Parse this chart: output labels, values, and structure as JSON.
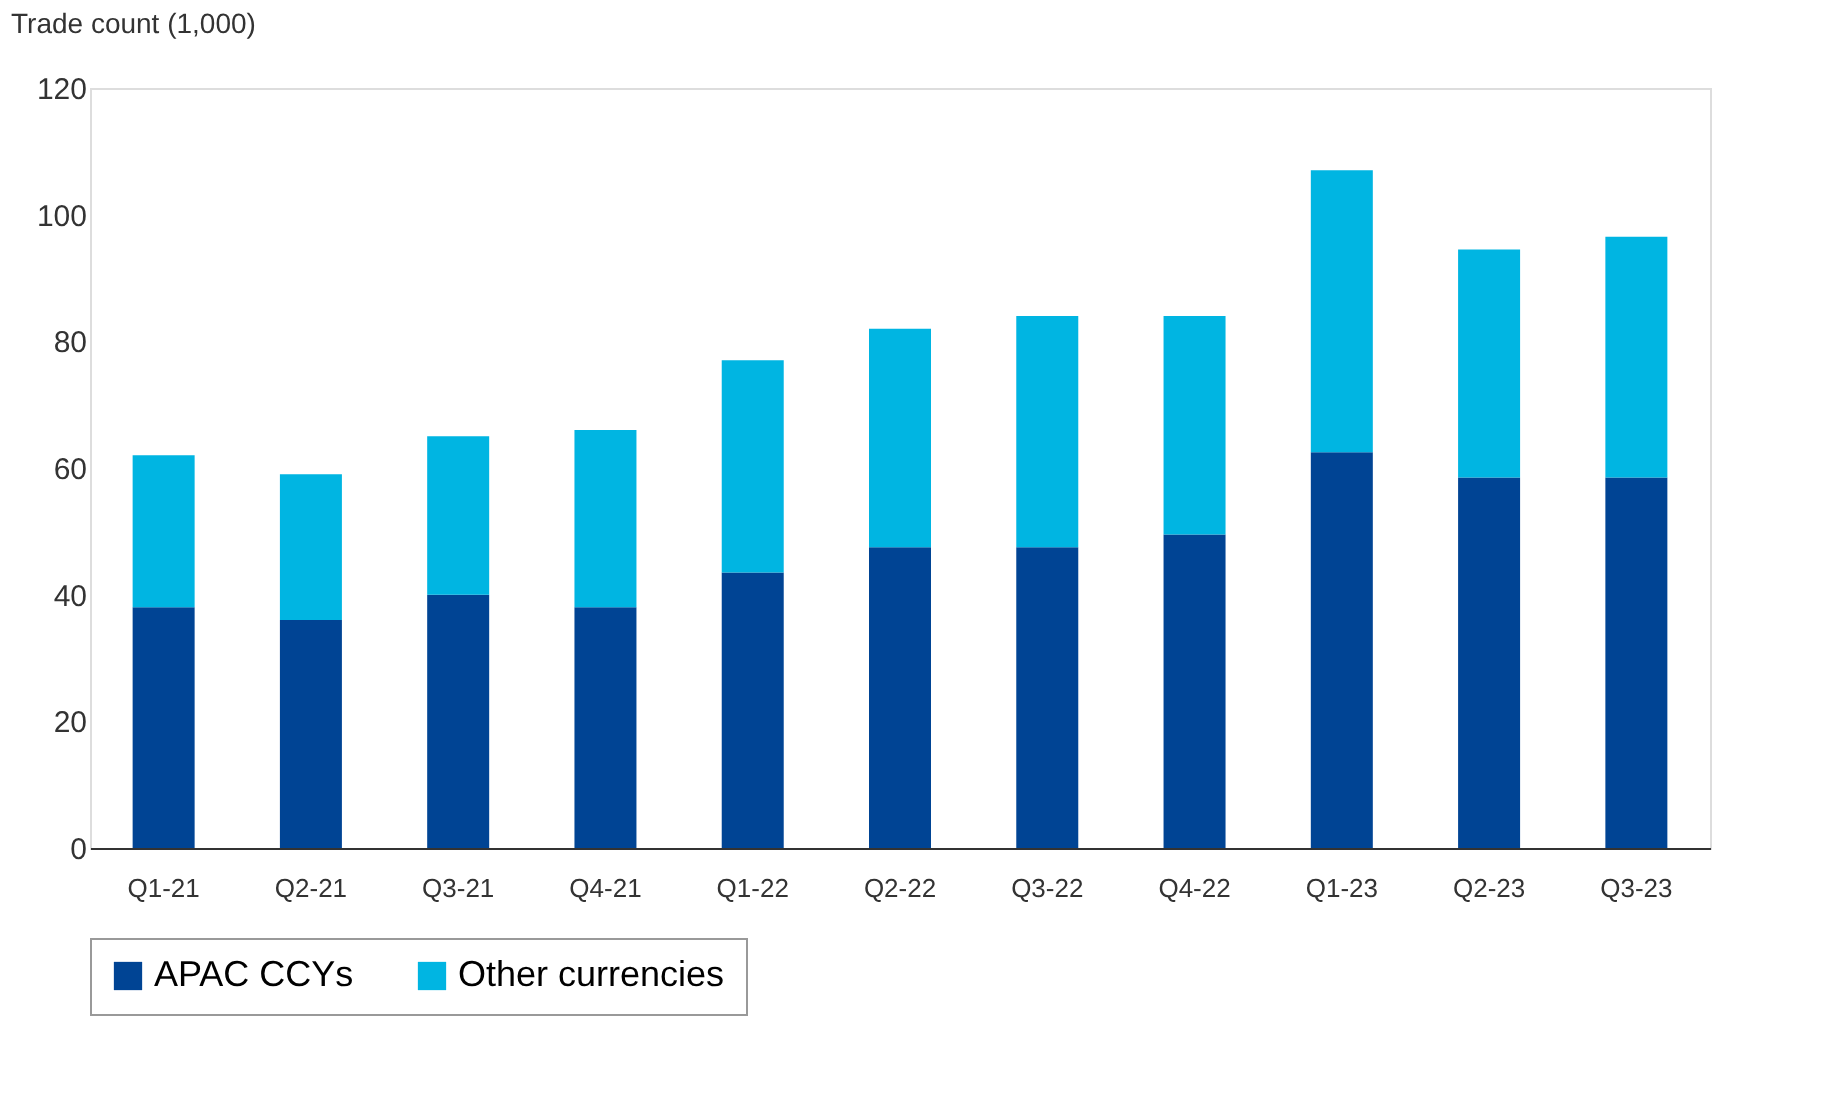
{
  "chart_data": {
    "type": "bar",
    "stacked": true,
    "ylabel": "Trade count (1,000)",
    "categories": [
      "Q1-21",
      "Q2-21",
      "Q3-21",
      "Q4-21",
      "Q1-22",
      "Q2-22",
      "Q3-22",
      "Q4-22",
      "Q1-23",
      "Q2-23",
      "Q3-23"
    ],
    "series": [
      {
        "name": "APAC CCYs",
        "color": "#004494",
        "values": [
          38,
          36,
          40,
          38,
          43.5,
          47.5,
          47.5,
          49.5,
          62.5,
          58.5,
          58.5
        ]
      },
      {
        "name": "Other currencies",
        "color": "#00b5e2",
        "values": [
          24,
          23,
          25,
          28,
          33.5,
          34.5,
          36.5,
          34.5,
          44.5,
          36,
          38
        ]
      }
    ],
    "ylim": [
      0,
      120
    ],
    "yticks": [
      0,
      20,
      40,
      60,
      80,
      100,
      120
    ],
    "grid": false,
    "legend": "bottom"
  }
}
